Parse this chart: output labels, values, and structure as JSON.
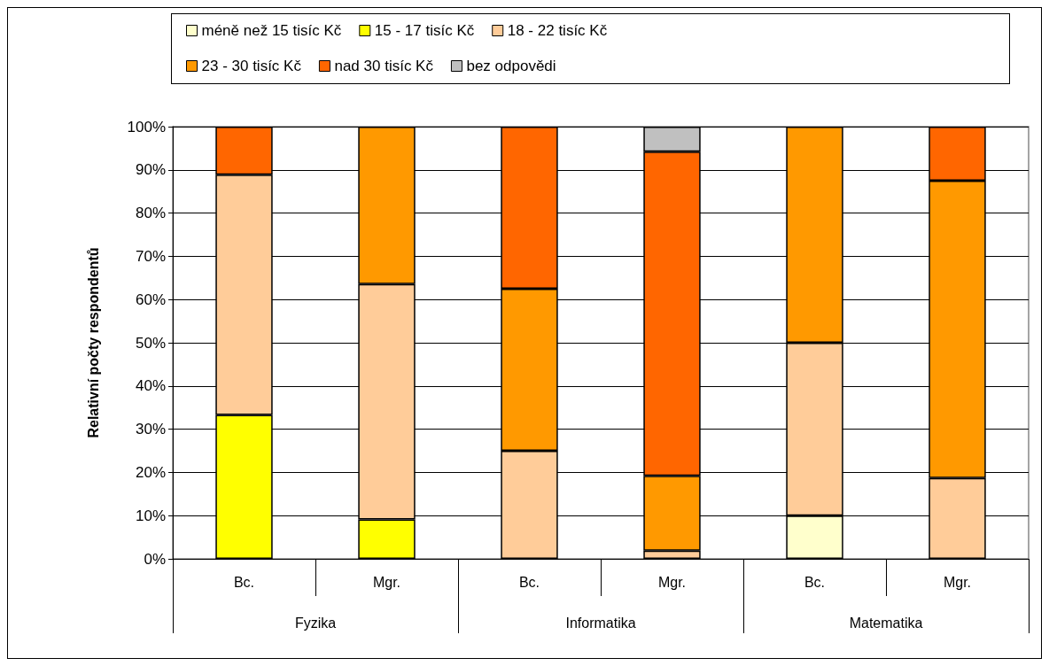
{
  "chart_data": {
    "type": "bar",
    "stacked": true,
    "ylabel": "Relativní počty respondentů",
    "categories": [
      "Bc.",
      "Mgr.",
      "Bc.",
      "Mgr.",
      "Bc.",
      "Mgr."
    ],
    "annotations": [
      "Fyzika",
      "Informatika",
      "Matematika"
    ],
    "series": [
      {
        "name": "méně než 15 tisíc Kč",
        "color": "#ffffcc",
        "values": [
          null,
          null,
          null,
          null,
          10,
          null
        ]
      },
      {
        "name": "15 - 17 tisíc Kč",
        "color": "#ffff00",
        "values": [
          33.3,
          9.1,
          null,
          null,
          null,
          null
        ]
      },
      {
        "name": "18 - 22 tisíc Kč",
        "color": "#ffcc99",
        "values": [
          55.6,
          54.5,
          25,
          1.9,
          40,
          18.7
        ]
      },
      {
        "name": "23 - 30 tisíc Kč",
        "color": "#ff9900",
        "values": [
          null,
          36.4,
          37.5,
          17.3,
          50,
          68.8
        ]
      },
      {
        "name": "nad 30 tisíc Kč",
        "color": "#ff6600",
        "values": [
          11.1,
          null,
          37.5,
          75,
          null,
          12.5
        ]
      },
      {
        "name": "bez odpovědi",
        "color": "#c0c0c0",
        "values": [
          null,
          null,
          null,
          5.8,
          null,
          null
        ]
      }
    ],
    "ylim": [
      0,
      100
    ],
    "yticks": [
      {
        "value": 0,
        "label": "0%"
      },
      {
        "value": 10,
        "label": "10%"
      },
      {
        "value": 20,
        "label": "20%"
      },
      {
        "value": 30,
        "label": "30%"
      },
      {
        "value": 40,
        "label": "40%"
      },
      {
        "value": 50,
        "label": "50%"
      },
      {
        "value": 60,
        "label": "60%"
      },
      {
        "value": 70,
        "label": "70%"
      },
      {
        "value": 80,
        "label": "80%"
      },
      {
        "value": 90,
        "label": "90%"
      },
      {
        "value": 100,
        "label": "100%"
      }
    ],
    "grid": "y",
    "legend": "top"
  }
}
